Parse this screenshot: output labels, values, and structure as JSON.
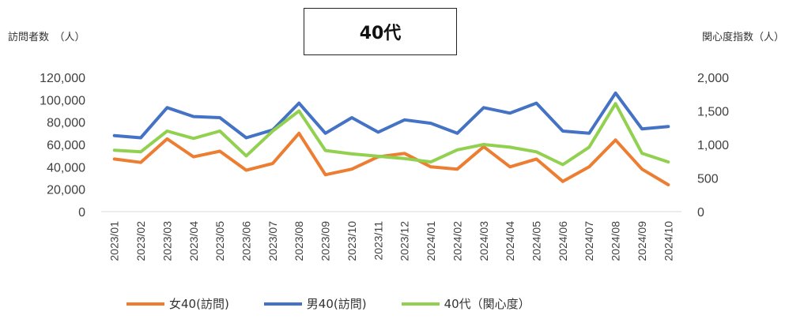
{
  "chart_data": {
    "type": "line",
    "title": "40代",
    "ylabel_left": "訪問者数　（人）",
    "ylabel_right": "関心度指数（人）",
    "categories": [
      "2023/01",
      "2023/02",
      "2023/03",
      "2023/04",
      "2023/05",
      "2023/06",
      "2023/07",
      "2023/08",
      "2023/09",
      "2023/10",
      "2023/11",
      "2023/12",
      "2024/01",
      "2024/02",
      "2024/03",
      "2024/04",
      "2024/05",
      "2024/06",
      "2024/07",
      "2024/08",
      "2024/09",
      "2024/10"
    ],
    "ylim_left": [
      0,
      120000
    ],
    "ylim_right": [
      0,
      2000
    ],
    "yticks_left": [
      "0",
      "20,000",
      "40,000",
      "60,000",
      "80,000",
      "100,000",
      "120,000"
    ],
    "yticks_right": [
      "0",
      "500",
      "1,000",
      "1,500",
      "2,000"
    ],
    "legend_position": "bottom",
    "series": [
      {
        "name": "女40(訪問)",
        "axis": "left",
        "color": "#ED7D31",
        "values": [
          47000,
          44000,
          65000,
          49000,
          54000,
          37000,
          43000,
          70000,
          33000,
          38000,
          49000,
          52000,
          40000,
          38000,
          58000,
          40000,
          47000,
          27000,
          40000,
          64000,
          38000,
          24000
        ]
      },
      {
        "name": "男40(訪問)",
        "axis": "left",
        "color": "#4472C4",
        "values": [
          68000,
          66000,
          93000,
          85000,
          84000,
          66000,
          73000,
          97000,
          70000,
          84000,
          71000,
          82000,
          79000,
          70000,
          93000,
          88000,
          97000,
          72000,
          70000,
          106000,
          74000,
          76000
        ]
      },
      {
        "name": "40代（関心度）",
        "axis": "right",
        "color": "#92D050",
        "values": [
          915,
          890,
          1200,
          1090,
          1200,
          830,
          1200,
          1500,
          910,
          860,
          825,
          790,
          740,
          920,
          1000,
          960,
          890,
          700,
          960,
          1610,
          870,
          740
        ]
      }
    ]
  }
}
